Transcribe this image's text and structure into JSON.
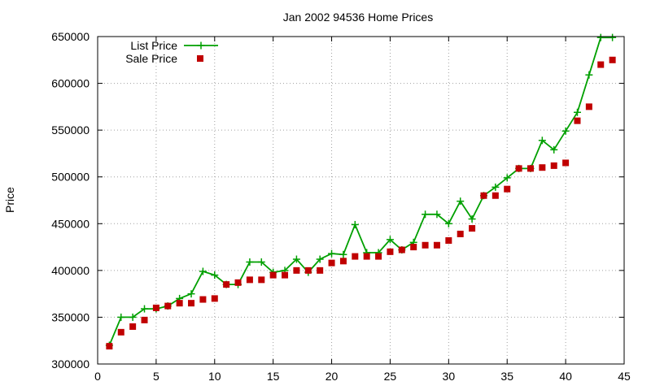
{
  "chart_data": {
    "type": "line",
    "title": "Jan 2002 94536 Home Prices",
    "xlabel": "",
    "ylabel": "Price",
    "xlim": [
      0,
      45
    ],
    "ylim": [
      300000,
      650000
    ],
    "x_ticks": [
      "0",
      "5",
      "10",
      "15",
      "20",
      "25",
      "30",
      "35",
      "40",
      "45"
    ],
    "y_ticks": [
      "300000",
      "350000",
      "400000",
      "450000",
      "500000",
      "550000",
      "600000",
      "650000"
    ],
    "grid": true,
    "legend_position": "top-left",
    "x": [
      1,
      2,
      3,
      4,
      5,
      6,
      7,
      8,
      9,
      10,
      11,
      12,
      13,
      14,
      15,
      16,
      17,
      18,
      19,
      20,
      21,
      22,
      23,
      24,
      25,
      26,
      27,
      28,
      29,
      30,
      31,
      32,
      33,
      34,
      35,
      36,
      37,
      38,
      39,
      40,
      41,
      42,
      43,
      44
    ],
    "series": [
      {
        "name": "List Price",
        "style": "lines+crosses",
        "color": "#00a000",
        "values": [
          320000,
          350000,
          350000,
          359000,
          359000,
          362000,
          370000,
          375000,
          399000,
          395000,
          385000,
          385000,
          409000,
          409000,
          398000,
          400000,
          412000,
          398000,
          412000,
          418000,
          417000,
          449000,
          419000,
          419000,
          433000,
          422000,
          430000,
          460000,
          460000,
          450000,
          474000,
          455000,
          480000,
          489000,
          499000,
          509000,
          509000,
          539000,
          529000,
          549000,
          569000,
          609000,
          649000,
          649000
        ]
      },
      {
        "name": "Sale Price",
        "style": "points-squares",
        "color": "#c00000",
        "values": [
          319000,
          334000,
          340000,
          347000,
          360000,
          362000,
          365000,
          365000,
          369000,
          370000,
          385000,
          387000,
          390000,
          390000,
          395000,
          395000,
          400000,
          400000,
          400000,
          408000,
          410000,
          415000,
          415000,
          415000,
          420000,
          422000,
          425000,
          427000,
          427000,
          432000,
          439000,
          445000,
          480000,
          480000,
          487000,
          509000,
          509000,
          510000,
          512000,
          515000,
          560000,
          575000,
          620000,
          625000
        ]
      }
    ]
  }
}
